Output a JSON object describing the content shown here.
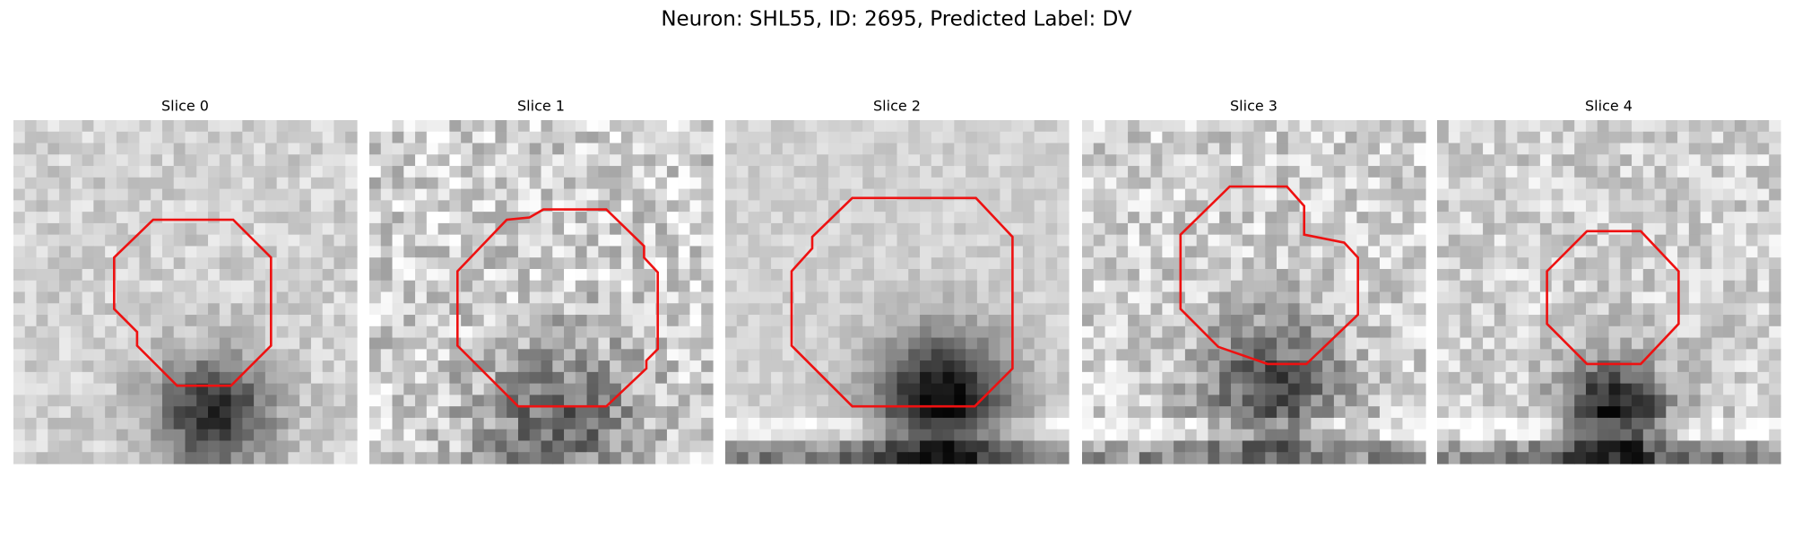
{
  "title": "Neuron: SHL55, ID: 2695, Predicted Label: DV",
  "panels": [
    {
      "title": "Slice 0"
    },
    {
      "title": "Slice 1"
    },
    {
      "title": "Slice 2"
    },
    {
      "title": "Slice 3"
    },
    {
      "title": "Slice 4"
    }
  ]
}
